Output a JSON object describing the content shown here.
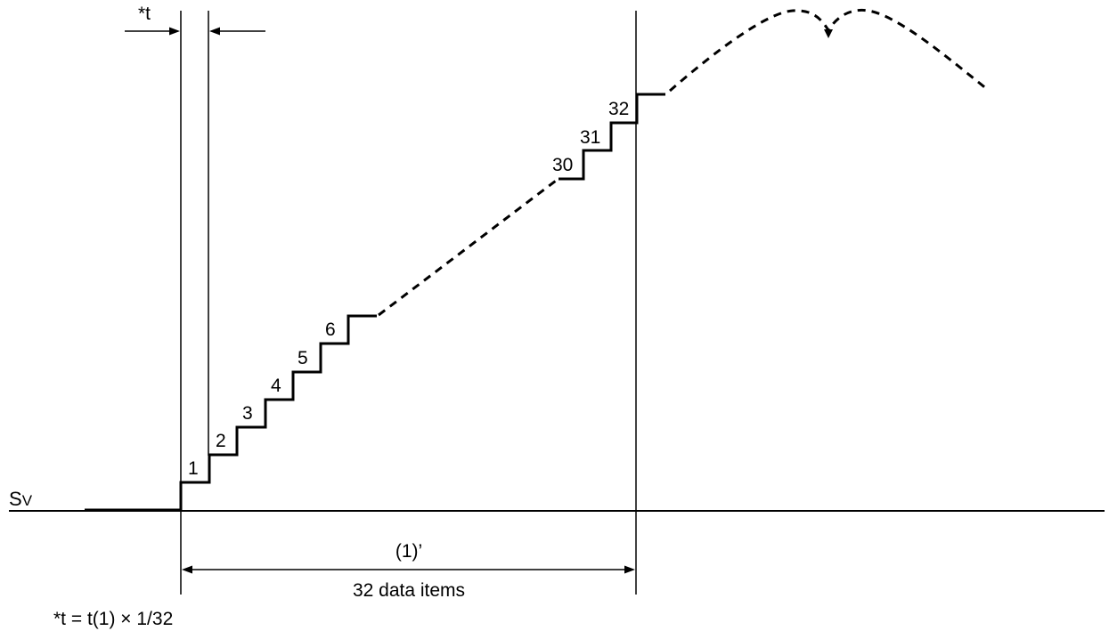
{
  "labels": {
    "t_marker": "*t",
    "axis_name_main": "S",
    "axis_name_sub": "V",
    "span_top": "(1)’",
    "span_bottom": "32 data items",
    "formula": "*t = t(1) × 1/32"
  },
  "steps_first": [
    "1",
    "2",
    "3",
    "4",
    "5",
    "6"
  ],
  "steps_last": [
    "30",
    "31",
    "32"
  ],
  "colors": {
    "line": "#000000",
    "background": "#ffffff"
  }
}
